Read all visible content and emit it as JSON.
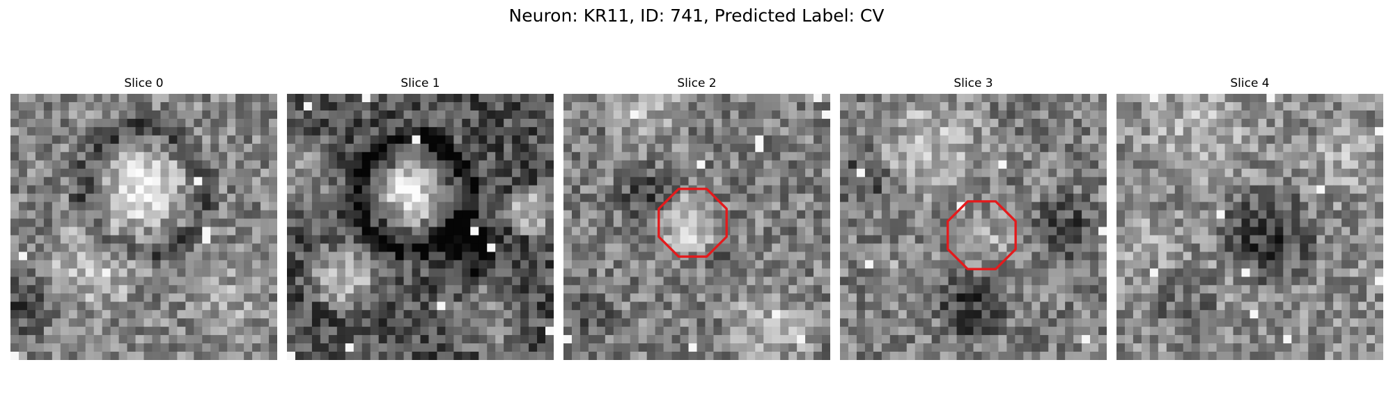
{
  "figure": {
    "title": "Neuron: KR11, ID: 741, Predicted Label: CV"
  },
  "panels": [
    {
      "title": "Slice 0",
      "ring": false
    },
    {
      "title": "Slice 1",
      "ring": false
    },
    {
      "title": "Slice 2",
      "ring": true
    },
    {
      "title": "Slice 3",
      "ring": true
    },
    {
      "title": "Slice 4",
      "ring": false
    }
  ],
  "colors": {
    "background": "#ffffff",
    "ring": "#e41a1c"
  }
}
